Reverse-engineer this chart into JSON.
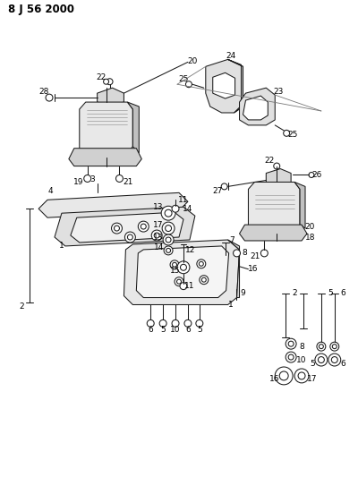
{
  "title": "8 J 56 2000",
  "bg_color": "#ffffff",
  "line_color": "#1a1a1a",
  "fig_width": 4.0,
  "fig_height": 5.33,
  "dpi": 100,
  "lw": 0.75,
  "label_fs": 6.5
}
